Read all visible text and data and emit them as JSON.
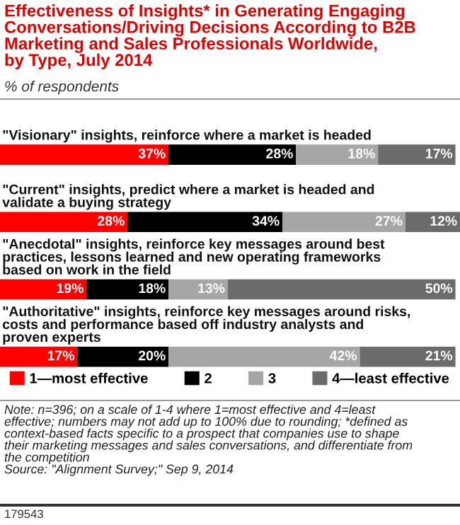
{
  "chart_data": {
    "type": "bar",
    "orientation": "horizontal",
    "stacked": true,
    "legend": "bottom",
    "tick_labels": false,
    "title": "Effectiveness of Insights* in Generating Engaging\nConversations/Driving Decisions According to B2B\nMarketing and Sales Professionals Worldwide,\nby Type, July 2014",
    "subtitle": "% of respondents",
    "categories": [
      "\"Visionary\" insights, reinforce where a market is headed",
      "\"Current\" insights, predict where a market is headed and\nvalidate a buying strategy",
      "\"Anecdotal\" insights, reinforce key messages around best\npractices, lessons learned and new operating frameworks\nbased on work in the field",
      "\"Authoritative\" insights, reinforce key messages around risks,\ncosts and performance based off industry analysts and\nproven experts"
    ],
    "series": [
      {
        "name": "1—most effective",
        "color": "#ff0000",
        "values": [
          37,
          28,
          19,
          17
        ],
        "value_labels": [
          "37%",
          "28%",
          "19%",
          "17%"
        ]
      },
      {
        "name": "2",
        "color": "#000000",
        "values": [
          28,
          34,
          18,
          20
        ],
        "value_labels": [
          "28%",
          "34%",
          "18%",
          "20%"
        ]
      },
      {
        "name": "3",
        "color": "#a6a6a6",
        "values": [
          18,
          27,
          13,
          42
        ],
        "value_labels": [
          "18%",
          "27%",
          "13%",
          "42%"
        ]
      },
      {
        "name": "4—least effective",
        "color": "#6b6b6b",
        "values": [
          17,
          12,
          50,
          21
        ],
        "value_labels": [
          "17%",
          "12%",
          "50%",
          "21%"
        ]
      }
    ],
    "annotations": [
      "Note: n=396; on a scale of 1-4 where 1=most effective and 4=least\neffective; numbers may not add up to 100% due to rounding; *defined as\ncontext-based facts specific to a prospect that companies use to shape\ntheir marketing messages and sales conversations, and differentiate from\nthe competition\nSource: \"Alignment Survey;\" Sep 9, 2014",
      "179543"
    ]
  }
}
